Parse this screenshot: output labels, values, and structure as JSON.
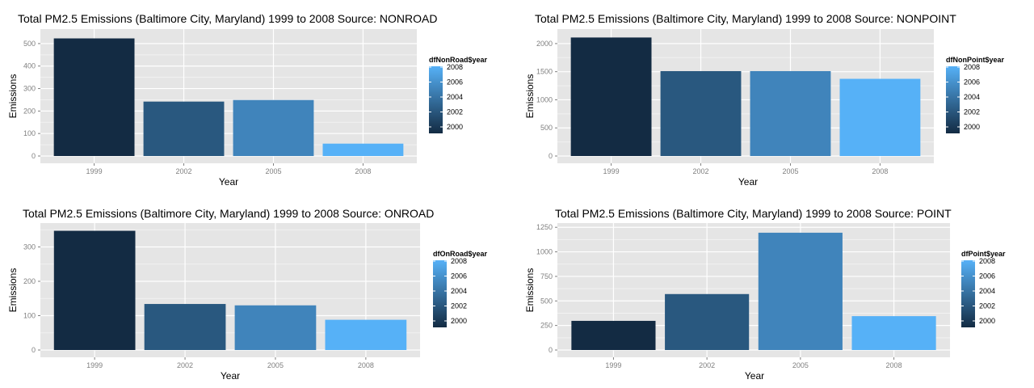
{
  "colors": {
    "panel_bg": "#e5e5e5",
    "grid_major": "#ffffff",
    "grid_minor": "#f2f2f2",
    "tick_text": "#7f7f7f",
    "gradient_low": "#132b43",
    "gradient_high": "#56b1f7"
  },
  "chart_data": [
    {
      "type": "bar",
      "title": "Total PM2.5 Emissions (Baltimore City, Maryland) 1999 to 2008 Source: NONROAD",
      "xlabel": "Year",
      "ylabel": "Emissions",
      "categories": [
        "1999",
        "2002",
        "2005",
        "2008"
      ],
      "values": [
        523,
        242,
        249,
        55
      ],
      "ylim": [
        0,
        550
      ],
      "yticks": [
        0,
        100,
        200,
        300,
        400,
        500
      ],
      "grid": true,
      "legend": {
        "title": "dfNonRoad$year",
        "labels": [
          "2008",
          "2006",
          "2004",
          "2002",
          "2000"
        ],
        "placement": "right"
      }
    },
    {
      "type": "bar",
      "title": "Total PM2.5 Emissions (Baltimore City, Maryland) 1999 to 2008 Source: NONPOINT",
      "xlabel": "Year",
      "ylabel": "Emissions",
      "categories": [
        "1999",
        "2002",
        "2005",
        "2008"
      ],
      "values": [
        2108,
        1510,
        1510,
        1373
      ],
      "ylim": [
        0,
        2200
      ],
      "yticks": [
        0,
        500,
        1000,
        1500,
        2000
      ],
      "grid": true,
      "legend": {
        "title": "dfNonPoint$year",
        "labels": [
          "2008",
          "2006",
          "2004",
          "2002",
          "2000"
        ],
        "placement": "right"
      }
    },
    {
      "type": "bar",
      "title": "Total PM2.5 Emissions (Baltimore City, Maryland) 1999 to 2008 Source: ONROAD",
      "xlabel": "Year",
      "ylabel": "Emissions",
      "categories": [
        "1999",
        "2002",
        "2005",
        "2008"
      ],
      "values": [
        347,
        134,
        130,
        88
      ],
      "ylim": [
        0,
        360
      ],
      "yticks": [
        0,
        100,
        200,
        300
      ],
      "grid": true,
      "legend": {
        "title": "dfOnRoad$year",
        "labels": [
          "2008",
          "2006",
          "2004",
          "2002",
          "2000"
        ],
        "placement": "right"
      }
    },
    {
      "type": "bar",
      "title": "Total PM2.5 Emissions (Baltimore City, Maryland) 1999 to 2008 Source: POINT",
      "xlabel": "Year",
      "ylabel": "Emissions",
      "categories": [
        "1999",
        "2002",
        "2005",
        "2008"
      ],
      "values": [
        297,
        570,
        1195,
        345
      ],
      "ylim": [
        0,
        1260
      ],
      "yticks": [
        0,
        250,
        500,
        750,
        1000,
        1250
      ],
      "grid": true,
      "legend": {
        "title": "dfPoint$year",
        "labels": [
          "2008",
          "2006",
          "2004",
          "2002",
          "2000"
        ],
        "placement": "right"
      }
    }
  ]
}
